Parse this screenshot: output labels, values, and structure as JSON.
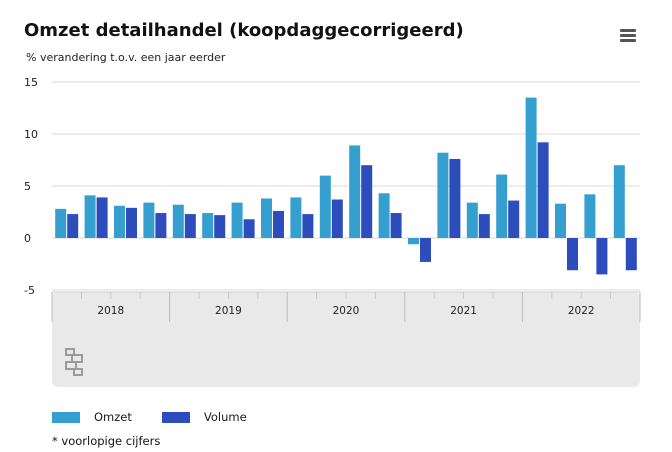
{
  "header": {
    "title": "Omzet detailhandel (koopdaggecorrigeerd)",
    "subtitle": "% verandering t.o.v. een jaar eerder",
    "menu_icon": "hamburger-menu-icon"
  },
  "footnote": "* voorlopige cijfers",
  "logo_icon": "cbs-logo-icon",
  "colors": {
    "omzet": "#35a0cf",
    "volume": "#2e4dbd",
    "axis_panel": "#e9e9e9"
  },
  "chart_data": {
    "type": "bar",
    "title": "Omzet detailhandel (koopdaggecorrigeerd)",
    "subtitle": "% verandering t.o.v. een jaar eerder",
    "ylim": [
      -5,
      15
    ],
    "yticks": [
      "-5",
      "0",
      "5",
      "10",
      "15"
    ],
    "grid": true,
    "legend_position": "bottom-left",
    "year_labels": [
      "2018",
      "2019",
      "2020",
      "2021",
      "2022"
    ],
    "quarters_per_year": 4,
    "series": [
      {
        "name": "Omzet",
        "values": [
          2.8,
          4.1,
          3.1,
          3.4,
          3.2,
          2.4,
          3.4,
          3.8,
          3.9,
          6.0,
          8.9,
          4.3,
          -0.6,
          8.2,
          3.4,
          6.1,
          13.5,
          3.3,
          4.2,
          7.0
        ]
      },
      {
        "name": "Volume",
        "values": [
          2.3,
          3.9,
          2.9,
          2.4,
          2.3,
          2.2,
          1.8,
          2.6,
          2.3,
          3.7,
          7.0,
          2.4,
          -2.3,
          7.6,
          2.3,
          3.6,
          9.2,
          -3.1,
          -3.5,
          -3.1
        ]
      }
    ]
  }
}
